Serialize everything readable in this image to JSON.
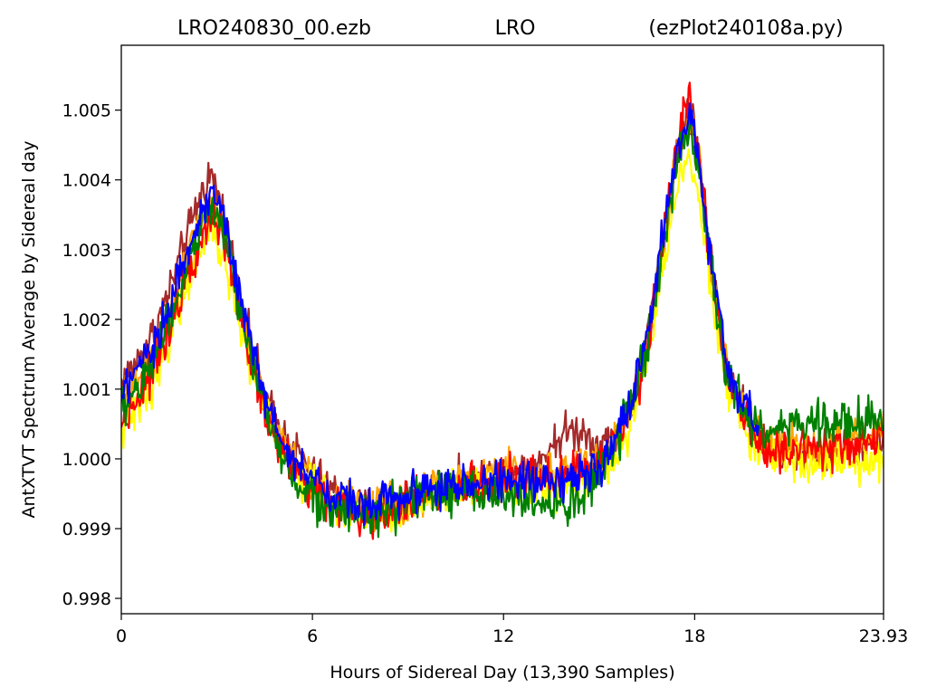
{
  "title": {
    "left": "LRO240830_00.ezb",
    "center": "LRO",
    "right": "(ezPlot240108a.py)"
  },
  "chart_data": {
    "type": "line",
    "xlabel": "Hours of Sidereal Day  (13,390 Samples)",
    "ylabel": "AntXTVT Spectrum Average by Sidereal day",
    "xlim": [
      0,
      23.93
    ],
    "ylim": [
      0.99778,
      1.00593
    ],
    "x_ticks": [
      {
        "value": 0,
        "label": "0"
      },
      {
        "value": 6,
        "label": "6"
      },
      {
        "value": 12,
        "label": "12"
      },
      {
        "value": 18,
        "label": "18"
      },
      {
        "value": 23.93,
        "label": "23.93"
      }
    ],
    "y_ticks": [
      {
        "value": 0.998,
        "label": "0.998"
      },
      {
        "value": 0.999,
        "label": "0.999"
      },
      {
        "value": 1.0,
        "label": "1.000"
      },
      {
        "value": 1.001,
        "label": "1.001"
      },
      {
        "value": 1.002,
        "label": "1.002"
      },
      {
        "value": 1.003,
        "label": "1.003"
      },
      {
        "value": 1.004,
        "label": "1.004"
      },
      {
        "value": 1.005,
        "label": "1.005"
      }
    ],
    "grid": false,
    "legend": "none",
    "series": [
      {
        "color": "#a52a2a",
        "x": [
          0,
          0.5,
          1.0,
          1.5,
          2.0,
          2.5,
          2.8,
          3.1,
          3.5,
          4.0,
          4.5,
          5.0,
          5.5,
          6.0,
          6.5,
          7.0,
          7.5,
          8.0,
          9.0,
          10.0,
          11.0,
          12.0,
          13.0,
          13.5,
          14.0,
          14.5,
          15.0,
          15.5,
          16.0,
          16.5,
          17.0,
          17.4,
          17.8,
          18.1,
          18.5,
          19.0,
          19.5,
          20.0,
          20.5,
          21.0,
          22.0,
          23.0,
          23.93
        ],
        "y": [
          1.0011,
          1.0014,
          1.0018,
          1.0024,
          1.0031,
          1.0038,
          1.0041,
          1.0037,
          1.0029,
          1.0018,
          1.0009,
          1.0004,
          1.0001,
          0.9998,
          0.9996,
          0.9994,
          0.9993,
          0.9993,
          0.9995,
          0.9996,
          0.9997,
          0.9998,
          0.9999,
          1.0002,
          1.0004,
          1.0004,
          1.0002,
          1.0003,
          1.0008,
          1.0017,
          1.0031,
          1.0043,
          1.0051,
          1.0045,
          1.0029,
          1.0014,
          1.0008,
          1.0003,
          1.0001,
          1.0001,
          1.0001,
          1.0002,
          1.0003
        ],
        "noise": 0.00018
      },
      {
        "color": "#ffa500",
        "x": [
          0,
          0.5,
          1.0,
          1.5,
          2.0,
          2.5,
          2.8,
          3.1,
          3.5,
          4.0,
          4.5,
          5.0,
          5.5,
          6.0,
          6.5,
          7.0,
          7.5,
          8.0,
          9.0,
          10.0,
          11.0,
          12.0,
          13.0,
          14.0,
          15.0,
          15.5,
          16.0,
          16.5,
          17.0,
          17.4,
          17.8,
          18.1,
          18.5,
          19.0,
          19.5,
          20.0,
          21.0,
          22.0,
          23.0,
          23.93
        ],
        "y": [
          1.0008,
          1.0011,
          1.0015,
          1.0021,
          1.0028,
          1.0034,
          1.0037,
          1.0034,
          1.0027,
          1.0016,
          1.0008,
          1.0003,
          0.9999,
          0.9997,
          0.9995,
          0.9994,
          0.9993,
          0.9993,
          0.9994,
          0.9996,
          0.9997,
          0.9998,
          0.9998,
          0.9999,
          1.0,
          1.0002,
          1.0007,
          1.0016,
          1.003,
          1.0042,
          1.005,
          1.0044,
          1.0028,
          1.0013,
          1.0007,
          1.0003,
          1.0002,
          1.0002,
          1.0003,
          1.0004
        ],
        "noise": 0.00018
      },
      {
        "color": "#ffff00",
        "x": [
          0,
          0.5,
          1.0,
          1.5,
          2.0,
          2.5,
          2.8,
          3.1,
          3.5,
          4.0,
          4.5,
          5.0,
          5.5,
          6.0,
          6.5,
          7.0,
          7.5,
          8.0,
          9.0,
          10.0,
          11.0,
          12.0,
          13.0,
          14.0,
          15.0,
          15.5,
          16.0,
          16.5,
          17.0,
          17.4,
          17.8,
          18.1,
          18.5,
          19.0,
          19.5,
          20.0,
          21.0,
          22.0,
          23.0,
          23.93
        ],
        "y": [
          1.0004,
          1.0007,
          1.0011,
          1.0017,
          1.0024,
          1.003,
          1.0032,
          1.003,
          1.0024,
          1.0014,
          1.0007,
          1.0002,
          0.9998,
          0.9996,
          0.9994,
          0.9993,
          0.9992,
          0.9992,
          0.9993,
          0.9995,
          0.9996,
          0.9997,
          0.9996,
          0.9996,
          0.9998,
          1.0,
          1.0005,
          1.0014,
          1.0027,
          1.0038,
          1.0044,
          1.0039,
          1.0025,
          1.0011,
          1.0005,
          1.0001,
          1.0,
          0.9999,
          0.9999,
          1.0
        ],
        "noise": 0.00018
      },
      {
        "color": "#ff0000",
        "x": [
          0,
          0.5,
          1.0,
          1.5,
          2.0,
          2.5,
          2.8,
          3.1,
          3.5,
          4.0,
          4.5,
          5.0,
          5.5,
          6.0,
          6.5,
          7.0,
          7.5,
          8.0,
          9.0,
          10.0,
          11.0,
          12.0,
          13.0,
          14.0,
          15.0,
          15.5,
          16.0,
          16.5,
          17.0,
          17.4,
          17.8,
          18.1,
          18.5,
          19.0,
          19.5,
          20.0,
          21.0,
          22.0,
          23.0,
          23.93
        ],
        "y": [
          1.0005,
          1.0009,
          1.0013,
          1.0019,
          1.0026,
          1.0032,
          1.0035,
          1.0033,
          1.0026,
          1.0015,
          1.0007,
          1.0002,
          0.9998,
          0.9996,
          0.9994,
          0.9993,
          0.9992,
          0.9992,
          0.9994,
          0.9995,
          0.9996,
          0.9997,
          0.9997,
          0.9998,
          0.9999,
          1.0002,
          1.0007,
          1.0016,
          1.0031,
          1.0044,
          1.0052,
          1.0045,
          1.0028,
          1.0012,
          1.0006,
          1.0002,
          1.0001,
          1.0001,
          1.0002,
          1.0003
        ],
        "noise": 0.0002
      },
      {
        "color": "#008000",
        "x": [
          0,
          0.5,
          1.0,
          1.5,
          2.0,
          2.5,
          2.8,
          3.1,
          3.5,
          4.0,
          4.5,
          5.0,
          5.5,
          6.0,
          6.5,
          7.0,
          7.5,
          8.0,
          9.0,
          10.0,
          11.0,
          12.0,
          13.0,
          13.5,
          14.0,
          14.5,
          15.0,
          15.5,
          16.0,
          16.5,
          17.0,
          17.4,
          17.8,
          18.1,
          18.5,
          19.0,
          19.5,
          20.0,
          20.5,
          21.0,
          22.0,
          23.0,
          23.93
        ],
        "y": [
          1.0007,
          1.001,
          1.0014,
          1.002,
          1.0027,
          1.0033,
          1.0036,
          1.0034,
          1.0027,
          1.0016,
          1.0007,
          1.0001,
          0.9997,
          0.9995,
          0.9993,
          0.9992,
          0.9992,
          0.9992,
          0.9994,
          0.9995,
          0.9995,
          0.9995,
          0.9994,
          0.9993,
          0.9993,
          0.9995,
          0.9998,
          1.0002,
          1.0007,
          1.0016,
          1.003,
          1.0041,
          1.0047,
          1.0042,
          1.0027,
          1.0013,
          1.0007,
          1.0004,
          1.0004,
          1.0005,
          1.0005,
          1.0005,
          1.0006
        ],
        "noise": 0.0002
      },
      {
        "color": "#0000ff",
        "x": [
          0,
          0.5,
          1.0,
          1.5,
          2.0,
          2.5,
          2.8,
          3.1,
          3.5,
          4.0,
          4.5,
          5.0,
          5.5,
          6.0,
          6.5,
          7.0,
          7.5,
          8.0,
          9.0,
          10.0,
          11.0,
          12.0,
          13.0,
          14.0,
          15.0,
          15.5,
          16.0,
          16.5,
          17.0,
          17.4,
          17.8,
          18.1,
          18.5,
          19.0,
          19.5,
          20.0
        ],
        "y": [
          1.0009,
          1.0012,
          1.0016,
          1.0022,
          1.0029,
          1.0035,
          1.0038,
          1.0036,
          1.0029,
          1.0018,
          1.0009,
          1.0003,
          0.9999,
          0.9997,
          0.9995,
          0.9994,
          0.9994,
          0.9994,
          0.9995,
          0.9996,
          0.9996,
          0.9997,
          0.9997,
          0.9997,
          0.9998,
          1.0002,
          1.0008,
          1.0018,
          1.0032,
          1.0043,
          1.0049,
          1.0044,
          1.0028,
          1.0014,
          1.0008,
          1.0004
        ],
        "noise": 0.00018
      }
    ]
  }
}
